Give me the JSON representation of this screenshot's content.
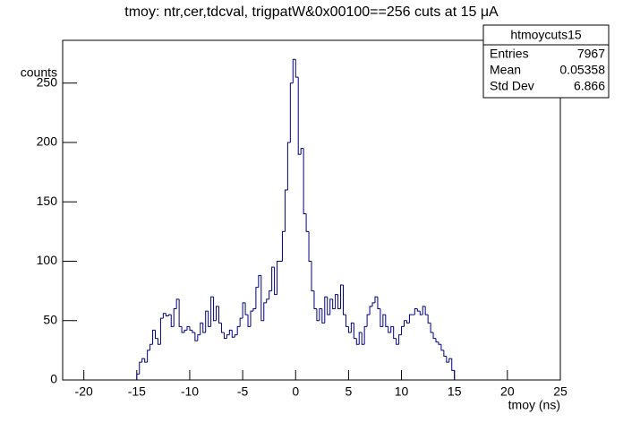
{
  "chart_data": {
    "type": "histogram",
    "title": "tmoy: ntr,cer,tdcval, trigpatW&0x00100==256 cuts at 15 μA",
    "x_label": "tmoy (ns)",
    "y_label": "counts",
    "color": "#000080",
    "xlim": [
      -22,
      25
    ],
    "ylim": [
      0,
      286
    ],
    "xticks": [
      -20,
      -15,
      -10,
      -5,
      0,
      5,
      10,
      15,
      20,
      25
    ],
    "yticks": [
      0,
      50,
      100,
      150,
      200,
      250
    ],
    "bins": [
      -15,
      -14.75,
      -14.5,
      -14.25,
      -14,
      -13.75,
      -13.5,
      -13.25,
      -13,
      -12.75,
      -12.5,
      -12.25,
      -12,
      -11.75,
      -11.5,
      -11.25,
      -11,
      -10.75,
      -10.5,
      -10.25,
      -10,
      -9.75,
      -9.5,
      -9.25,
      -9,
      -8.75,
      -8.5,
      -8.25,
      -8,
      -7.75,
      -7.5,
      -7.25,
      -7,
      -6.75,
      -6.5,
      -6.25,
      -6,
      -5.75,
      -5.5,
      -5.25,
      -5,
      -4.75,
      -4.5,
      -4.25,
      -4,
      -3.75,
      -3.5,
      -3.25,
      -3,
      -2.75,
      -2.5,
      -2.25,
      -2,
      -1.75,
      -1.5,
      -1.25,
      -1,
      -0.75,
      -0.5,
      -0.25,
      0,
      0.25,
      0.5,
      0.75,
      1,
      1.25,
      1.5,
      1.75,
      2,
      2.25,
      2.5,
      2.75,
      3,
      3.25,
      3.5,
      3.75,
      4,
      4.25,
      4.5,
      4.75,
      5,
      5.25,
      5.5,
      5.75,
      6,
      6.25,
      6.5,
      6.75,
      7,
      7.25,
      7.5,
      7.75,
      8,
      8.25,
      8.5,
      8.75,
      9,
      9.25,
      9.5,
      9.75,
      10,
      10.25,
      10.5,
      10.75,
      11,
      11.25,
      11.5,
      11.75,
      12,
      12.25,
      12.5,
      12.75,
      13,
      13.25,
      13.5,
      13.75,
      14,
      14.25,
      14.5,
      14.75,
      15
    ],
    "counts": [
      5,
      15,
      18,
      15,
      25,
      30,
      42,
      35,
      30,
      52,
      56,
      54,
      55,
      45,
      60,
      68,
      45,
      40,
      42,
      45,
      42,
      40,
      33,
      38,
      48,
      40,
      58,
      45,
      70,
      50,
      62,
      48,
      40,
      35,
      38,
      42,
      36,
      38,
      45,
      52,
      65,
      55,
      45,
      58,
      60,
      78,
      88,
      50,
      65,
      68,
      75,
      95,
      72,
      100,
      100,
      125,
      160,
      200,
      250,
      270,
      255,
      190,
      195,
      140,
      125,
      100,
      75,
      60,
      50,
      60,
      48,
      70,
      55,
      68,
      60,
      72,
      60,
      80,
      55,
      45,
      40,
      48,
      35,
      30,
      40,
      30,
      45,
      55,
      62,
      65,
      70,
      60,
      45,
      55,
      45,
      40,
      45,
      35,
      30,
      38,
      45,
      50,
      48,
      55,
      55,
      60,
      58,
      55,
      62,
      55,
      48,
      40,
      35,
      32,
      30,
      25,
      20,
      15,
      18,
      8
    ],
    "stats": {
      "title": "htmoycuts15",
      "rows": [
        [
          "Entries",
          "7967"
        ],
        [
          "Mean",
          "0.05358"
        ],
        [
          "Std Dev",
          "6.866"
        ]
      ]
    }
  }
}
